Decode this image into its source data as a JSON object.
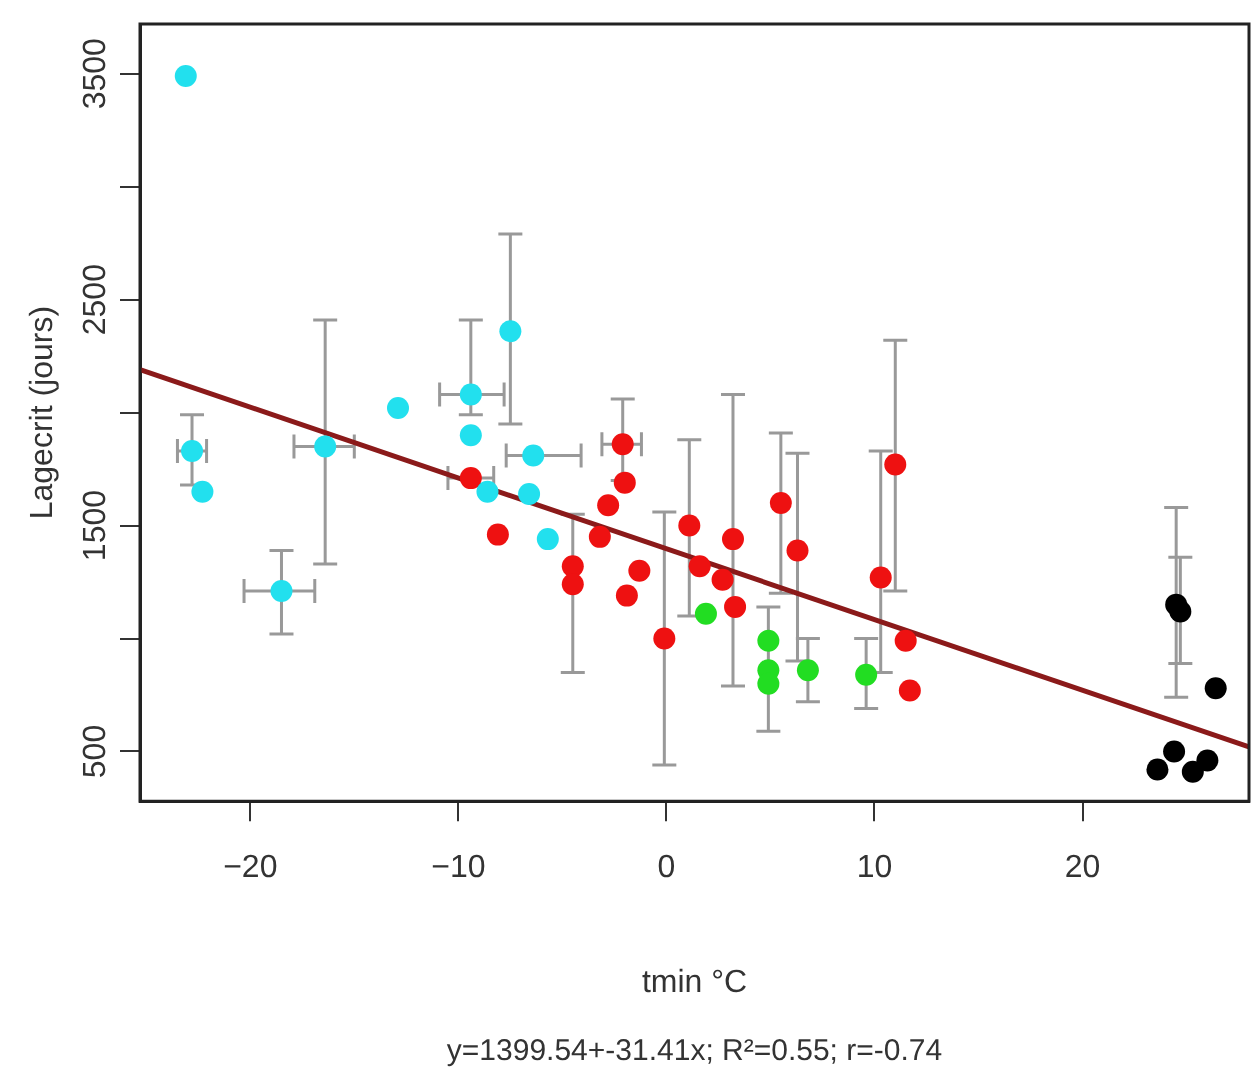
{
  "chart_data": {
    "type": "scatter",
    "xlabel": "tmin °C",
    "ylabel": "Lagecrit (jours)",
    "annotations": [
      "y=1399.54+-31.41x; R²=0.55; r=-0.74"
    ],
    "xlim": [
      -25.3,
      28
    ],
    "xticks": [
      -20,
      -10,
      0,
      10,
      20
    ],
    "ylim": [
      280,
      3720
    ],
    "yticks": [
      500,
      {
        "value": 1000,
        "label": null
      },
      1500,
      {
        "value": 2000,
        "label": null
      },
      2500,
      {
        "value": 3000,
        "label": null
      },
      3500
    ],
    "grid": false,
    "legend": false,
    "marker": "circle",
    "series": [
      {
        "color": "#22e0ee",
        "x": [
          -23.1,
          -22.8,
          -22.3,
          -18.5,
          -16.4,
          -12.9,
          -9.4,
          -9.4,
          -7.5,
          -6.4,
          -8.6,
          -5.7,
          -6.6
        ],
        "values": [
          3490,
          1830,
          1650,
          1210,
          1850,
          2020,
          2080,
          1900,
          2360,
          1810,
          1650,
          1440,
          1640
        ],
        "errors": [
          null,
          [
            1680,
            1990
          ],
          null,
          [
            1020,
            1390
          ],
          [
            1330,
            2410
          ],
          null,
          [
            1990,
            2410
          ],
          null,
          [
            1950,
            2790
          ],
          null,
          null,
          null,
          null
        ],
        "xerrors": [
          null,
          [
            -23.5,
            -22.1
          ],
          null,
          [
            -20.3,
            -16.9
          ],
          [
            -17.9,
            -15
          ],
          null,
          [
            -10.9,
            -7.8
          ],
          null,
          null,
          [
            -7.7,
            -4.1
          ],
          null,
          null,
          null
        ]
      },
      {
        "color": "#ee1111",
        "x": [
          -9.4,
          -8.1,
          -2.1,
          -2.0,
          -2.8,
          -3.2,
          -4.5,
          -4.5,
          -1.3,
          -1.9,
          -0.1,
          1.1,
          1.6,
          2.7,
          3.2,
          3.3,
          5.5,
          6.3,
          11.0,
          10.3,
          11.5,
          11.7
        ],
        "values": [
          1710,
          1460,
          1860,
          1690,
          1590,
          1450,
          1320,
          1240,
          1300,
          1190,
          1000,
          1500,
          1320,
          1260,
          1440,
          1140,
          1600,
          1390,
          1770,
          1270,
          990,
          770
        ],
        "errors": [
          null,
          null,
          [
            1700,
            2060
          ],
          null,
          null,
          null,
          null,
          [
            850,
            1550
          ],
          null,
          null,
          [
            440,
            1560
          ],
          [
            1100,
            1880
          ],
          null,
          null,
          [
            790,
            2080
          ],
          null,
          [
            1200,
            1910
          ],
          [
            900,
            1820
          ],
          [
            1210,
            2320
          ],
          [
            850,
            1830
          ],
          null,
          null
        ],
        "xerrors": [
          [
            -10.5,
            -8.3
          ],
          null,
          [
            -3.1,
            -1.2
          ],
          null,
          null,
          null,
          null,
          null,
          null,
          null,
          null,
          null,
          null,
          null,
          null,
          null,
          null,
          null,
          null,
          null,
          null,
          null
        ]
      },
      {
        "color": "#22dd22",
        "x": [
          1.9,
          4.9,
          4.9,
          4.9,
          6.8,
          9.6
        ],
        "values": [
          1110,
          990,
          860,
          800,
          860,
          840
        ],
        "errors": [
          null,
          null,
          [
            590,
            1140
          ],
          null,
          [
            720,
            1000
          ],
          [
            690,
            1000
          ]
        ]
      },
      {
        "color": "#000000",
        "x": [
          24.5,
          24.7,
          26.4,
          23.6,
          24.4,
          25.3,
          26.0
        ],
        "values": [
          1150,
          1120,
          780,
          420,
          500,
          410,
          460
        ],
        "errors": [
          [
            740,
            1580
          ],
          [
            890,
            1360
          ],
          null,
          null,
          null,
          null,
          null
        ]
      },
      {
        "type": "line",
        "color": "#8b1a1a",
        "marker": "none",
        "x": [
          -25.3,
          28
        ],
        "values": [
          2190,
          520
        ]
      }
    ]
  }
}
